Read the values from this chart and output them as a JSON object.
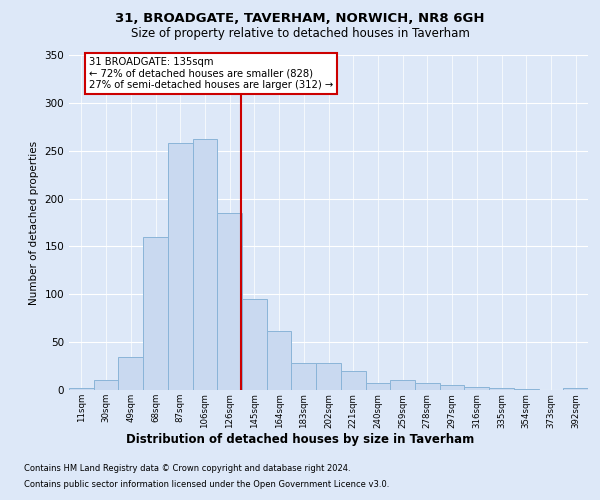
{
  "title1": "31, BROADGATE, TAVERHAM, NORWICH, NR8 6GH",
  "title2": "Size of property relative to detached houses in Taverham",
  "xlabel": "Distribution of detached houses by size in Taverham",
  "ylabel": "Number of detached properties",
  "bin_labels": [
    "11sqm",
    "30sqm",
    "49sqm",
    "68sqm",
    "87sqm",
    "106sqm",
    "126sqm",
    "145sqm",
    "164sqm",
    "183sqm",
    "202sqm",
    "221sqm",
    "240sqm",
    "259sqm",
    "278sqm",
    "297sqm",
    "316sqm",
    "335sqm",
    "354sqm",
    "373sqm",
    "392sqm"
  ],
  "bar_values": [
    2,
    10,
    35,
    160,
    258,
    262,
    185,
    95,
    62,
    28,
    28,
    20,
    7,
    10,
    7,
    5,
    3,
    2,
    1,
    0,
    2
  ],
  "bar_color": "#c9d9f0",
  "bar_edge_color": "#8ab4d8",
  "vline_x_index": 6.47,
  "vline_color": "#cc0000",
  "annotation_title": "31 BROADGATE: 135sqm",
  "annotation_line1": "← 72% of detached houses are smaller (828)",
  "annotation_line2": "27% of semi-detached houses are larger (312) →",
  "annotation_box_color": "#ffffff",
  "annotation_border_color": "#cc0000",
  "ylim": [
    0,
    350
  ],
  "yticks": [
    0,
    50,
    100,
    150,
    200,
    250,
    300,
    350
  ],
  "footnote1": "Contains HM Land Registry data © Crown copyright and database right 2024.",
  "footnote2": "Contains public sector information licensed under the Open Government Licence v3.0.",
  "bg_color": "#dde8f8",
  "plot_bg_color": "#dde8f8"
}
